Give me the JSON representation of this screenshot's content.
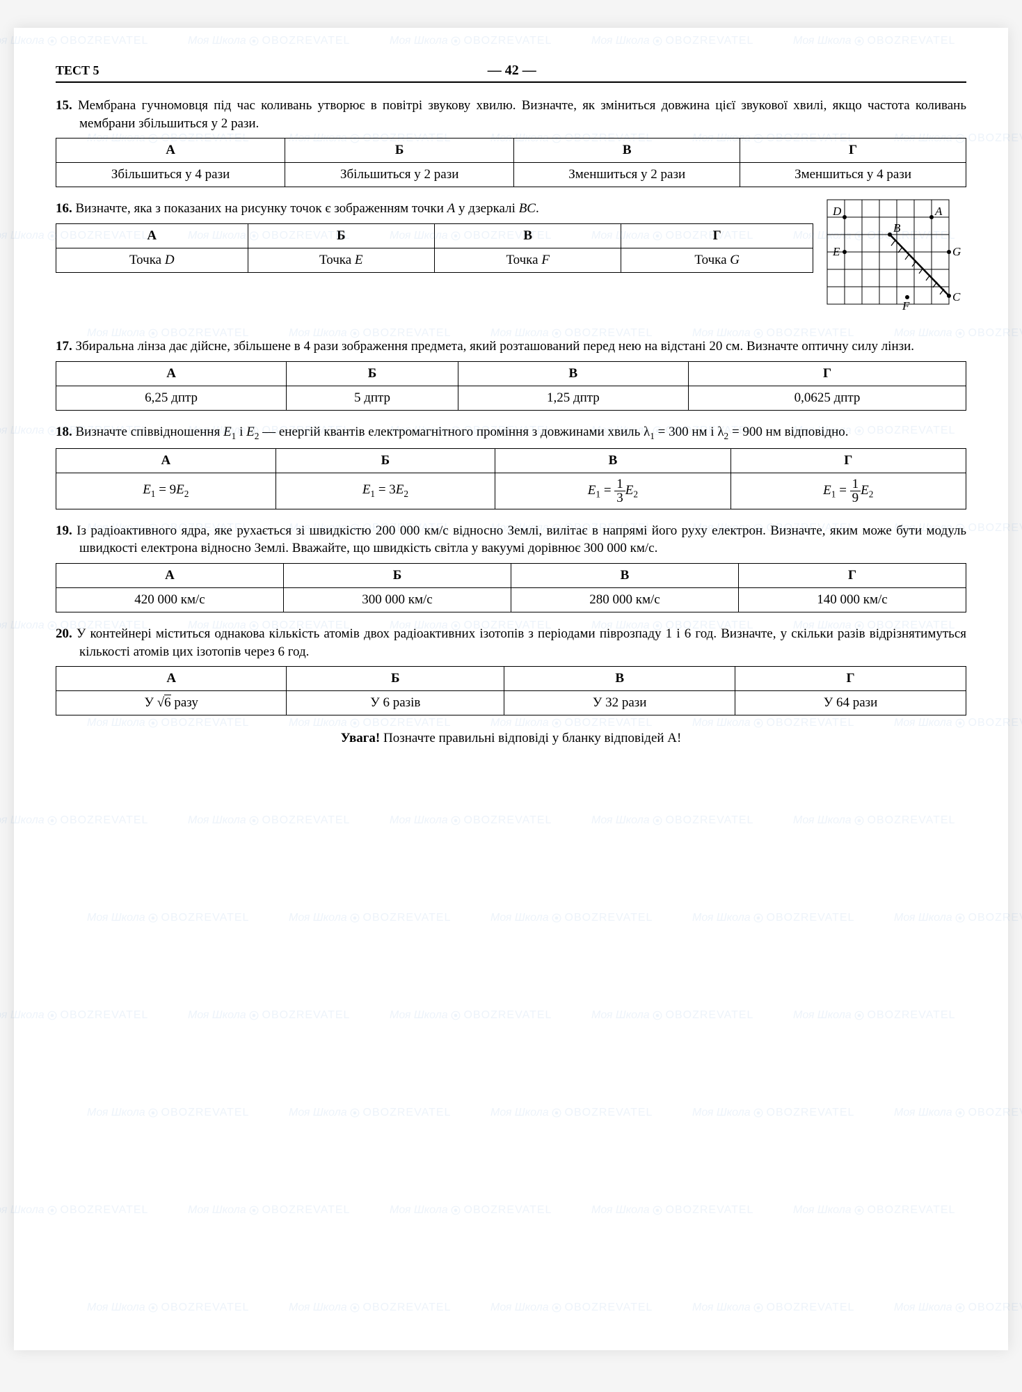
{
  "header": {
    "test_label": "ТЕСТ 5",
    "page_number": "42"
  },
  "watermark": {
    "text": "Моя Школа",
    "brand": "OBOZREVATEL",
    "color": "#1a6dbf",
    "opacity": 0.08
  },
  "questions": [
    {
      "number": "15.",
      "text": "Мембрана гучномовця під час коливань утворює в повітрі звукову хвилю. Визначте, як зміниться довжина цієї звукової хвилі, якщо частота коливань мембрани збільшиться у 2 рази.",
      "options": {
        "А": "Збільшиться у 4 рази",
        "Б": "Збільшиться у 2 рази",
        "В": "Зменшиться у 2 рази",
        "Г": "Зменшиться у 4 рази"
      }
    },
    {
      "number": "16.",
      "text": "Визначте, яка з показаних на рисунку точок є зображенням точки A у дзеркалі BC.",
      "options": {
        "А": "Точка D",
        "Б": "Точка E",
        "В": "Точка F",
        "Г": "Точка G"
      },
      "diagram": {
        "type": "grid_mirror",
        "grid": 7,
        "points": {
          "D": [
            1,
            1
          ],
          "A": [
            6,
            1
          ],
          "E": [
            1,
            3
          ],
          "B": [
            4,
            2.2
          ],
          "G": [
            7,
            3
          ],
          "F": [
            4.6,
            5.7
          ],
          "C": [
            7,
            5.7
          ]
        },
        "mirror_line": [
          [
            3.5,
            2
          ],
          [
            7,
            5.7
          ]
        ],
        "grid_color": "#000000",
        "background": "#ffffff"
      }
    },
    {
      "number": "17.",
      "text": "Збиральна лінза дає дійсне, збільшене в 4 рази зображення предмета, який розташований перед нею на відстані 20 см. Визначте оптичну силу лінзи.",
      "options": {
        "А": "6,25 дптр",
        "Б": "5 дптр",
        "В": "1,25 дптр",
        "Г": "0,0625 дптр"
      }
    },
    {
      "number": "18.",
      "text_html": "Визначте співвідношення E₁ і E₂ — енергій квантів електромагнітного проміння з довжинами хвиль λ₁ = 300 нм і λ₂ = 900 нм відповідно.",
      "options_html": {
        "А": "E₁ = 9E₂",
        "Б": "E₁ = 3E₂",
        "В": "E₁ = (1/3)E₂",
        "Г": "E₁ = (1/9)E₂"
      }
    },
    {
      "number": "19.",
      "text": "Із радіоактивного ядра, яке рухається зі швидкістю 200 000 км/с відносно Землі, вилітає в напрямі його руху електрон. Визначте, яким може бути модуль швидкості електрона відносно Землі. Вважайте, що швидкість світла у вакуумі дорівнює 300 000 км/с.",
      "options": {
        "А": "420 000 км/с",
        "Б": "300 000 км/с",
        "В": "280 000 км/с",
        "Г": "140 000 км/с"
      }
    },
    {
      "number": "20.",
      "text": "У контейнері міститься однакова кількість атомів двох радіоактивних ізотопів з періодами піврозпаду 1 і 6 год. Визначте, у скільки разів відрізнятимуться кількості атомів цих ізотопів через 6 год.",
      "options_html": {
        "А": "У √6 разу",
        "Б": "У 6 разів",
        "В": "У 32 рази",
        "Г": "У 64 рази"
      }
    }
  ],
  "footer": {
    "bold": "Увага!",
    "text": " Позначте правильні відповіді у бланку відповідей А!"
  },
  "column_headers": [
    "А",
    "Б",
    "В",
    "Г"
  ]
}
